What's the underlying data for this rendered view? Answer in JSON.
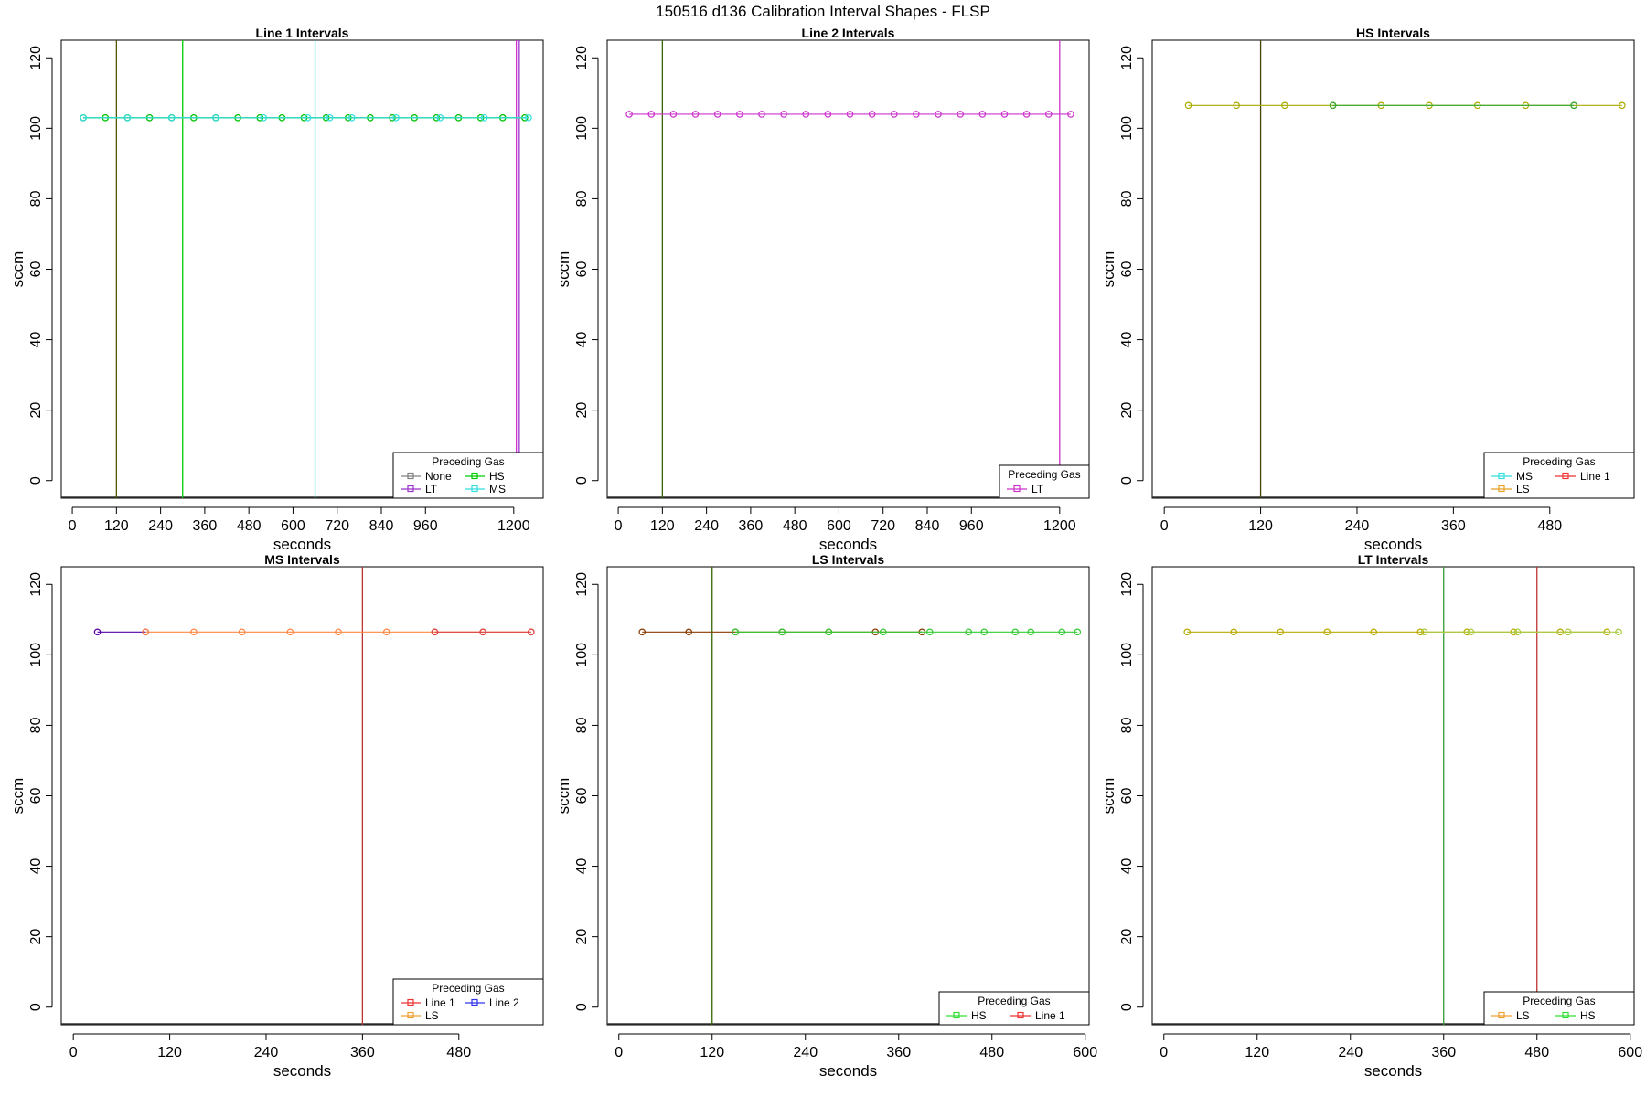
{
  "title": "150516   d136   Calibration Interval Shapes - FLSP",
  "chart_data": [
    {
      "type": "line",
      "title": "Line 1 Intervals",
      "xlabel": "seconds",
      "ylabel": "sccm",
      "xlim": [
        -30,
        1280
      ],
      "ylim": [
        -5,
        125
      ],
      "xticks": [
        0,
        120,
        240,
        360,
        480,
        600,
        720,
        840,
        960,
        1200
      ],
      "yticks": [
        0,
        20,
        40,
        60,
        80,
        100,
        120
      ],
      "legend_title": "Preceding Gas",
      "legend_position": "bottom-right",
      "legend": [
        {
          "label": "None",
          "color": "#808080"
        },
        {
          "label": "HS",
          "color": "#00cc00"
        },
        {
          "label": "LT",
          "color": "#9933cc"
        },
        {
          "label": "MS",
          "color": "#33dddd"
        }
      ],
      "vlines": [
        {
          "x": 120,
          "color": "#555500"
        },
        {
          "x": 300,
          "color": "#00cc00"
        },
        {
          "x": 660,
          "color": "#33dddd"
        },
        {
          "x": 1207,
          "color": "#cc33cc"
        },
        {
          "x": 1215,
          "color": "#9933cc"
        }
      ],
      "series": [
        {
          "name": "None",
          "color": "#808080",
          "x": [
            30,
            90,
            150,
            210,
            270,
            330,
            390,
            450,
            510,
            570,
            630,
            690,
            750,
            810,
            870,
            930,
            990,
            1050,
            1110,
            1170,
            1230
          ],
          "y": [
            103,
            103,
            103,
            103,
            103,
            103,
            103,
            103,
            103,
            103,
            103,
            103,
            103,
            103,
            103,
            103,
            103,
            103,
            103,
            103,
            103
          ]
        },
        {
          "name": "HS",
          "color": "#00cc00",
          "x": [
            30,
            90,
            150,
            210,
            270,
            330,
            390,
            450,
            510,
            570,
            630,
            690,
            750,
            810,
            870,
            930,
            990,
            1050,
            1110,
            1170,
            1230
          ],
          "y": [
            103,
            103,
            103,
            103,
            103,
            103,
            103,
            103,
            103,
            103,
            103,
            103,
            103,
            103,
            103,
            103,
            103,
            103,
            103,
            103,
            103
          ]
        },
        {
          "name": "MS",
          "color": "#33dddd",
          "x": [
            30,
            150,
            270,
            390,
            520,
            640,
            700,
            760,
            880,
            1000,
            1120,
            1240
          ],
          "y": [
            103,
            103,
            103,
            103,
            103,
            103,
            103,
            103,
            103,
            103,
            103,
            103
          ]
        }
      ]
    },
    {
      "type": "line",
      "title": "Line 2 Intervals",
      "xlabel": "seconds",
      "ylabel": "sccm",
      "xlim": [
        -30,
        1280
      ],
      "ylim": [
        -5,
        125
      ],
      "xticks": [
        0,
        120,
        240,
        360,
        480,
        600,
        720,
        840,
        960,
        1200
      ],
      "yticks": [
        0,
        20,
        40,
        60,
        80,
        100,
        120
      ],
      "legend_title": "Preceding Gas",
      "legend_position": "bottom-right",
      "legend": [
        {
          "label": "LT",
          "color": "#cc33cc"
        }
      ],
      "vlines": [
        {
          "x": 120,
          "color": "#336600"
        },
        {
          "x": 1200,
          "color": "#cc33cc"
        }
      ],
      "series": [
        {
          "name": "LT",
          "color": "#cc33cc",
          "x": [
            30,
            90,
            150,
            210,
            270,
            330,
            390,
            450,
            510,
            570,
            630,
            690,
            750,
            810,
            870,
            930,
            990,
            1050,
            1110,
            1170,
            1230
          ],
          "y": [
            104,
            104,
            104,
            104,
            104,
            104,
            104,
            104,
            104,
            104,
            104,
            104,
            104,
            104,
            104,
            104,
            104,
            104,
            104,
            104,
            104
          ]
        }
      ]
    },
    {
      "type": "line",
      "title": "HS Intervals",
      "xlabel": "seconds",
      "ylabel": "sccm",
      "xlim": [
        -15,
        585
      ],
      "ylim": [
        -5,
        125
      ],
      "xticks": [
        0,
        120,
        240,
        360,
        480
      ],
      "yticks": [
        0,
        20,
        40,
        60,
        80,
        100,
        120
      ],
      "legend_title": "Preceding Gas",
      "legend_position": "bottom-right",
      "legend": [
        {
          "label": "MS",
          "color": "#33dddd"
        },
        {
          "label": "Line 1",
          "color": "#ee3333"
        },
        {
          "label": "LS",
          "color": "#e8a020"
        }
      ],
      "vlines": [
        {
          "x": 120,
          "color": "#444400"
        }
      ],
      "series": [
        {
          "name": "LS",
          "color": "#aaaa00",
          "x": [
            30,
            90,
            150,
            210,
            270,
            330,
            390,
            450,
            510,
            570
          ],
          "y": [
            106.5,
            106.5,
            106.5,
            106.5,
            106.5,
            106.5,
            106.5,
            106.5,
            106.5,
            106.5
          ]
        },
        {
          "name": "MS",
          "color": "#33aa33",
          "x": [
            210,
            510
          ],
          "y": [
            106.5,
            106.5
          ]
        }
      ]
    },
    {
      "type": "line",
      "title": "MS Intervals",
      "xlabel": "seconds",
      "ylabel": "sccm",
      "xlim": [
        -15,
        585
      ],
      "ylim": [
        -5,
        125
      ],
      "xticks": [
        0,
        120,
        240,
        360,
        480
      ],
      "yticks": [
        0,
        20,
        40,
        60,
        80,
        100,
        120
      ],
      "legend_title": "Preceding Gas",
      "legend_position": "bottom-right",
      "legend": [
        {
          "label": "Line 1",
          "color": "#ee3333"
        },
        {
          "label": "Line 2",
          "color": "#3333ee"
        },
        {
          "label": "LS",
          "color": "#f0a030"
        }
      ],
      "vlines": [
        {
          "x": 360,
          "color": "#bb3333"
        }
      ],
      "series": [
        {
          "name": "Line 2",
          "color": "#5500aa",
          "x": [
            30,
            90
          ],
          "y": [
            106.5,
            106.5
          ]
        },
        {
          "name": "LS",
          "color": "#ff8844",
          "x": [
            90,
            150,
            210,
            270,
            330,
            390,
            450,
            510,
            570
          ],
          "y": [
            106.5,
            106.5,
            106.5,
            106.5,
            106.5,
            106.5,
            106.5,
            106.5,
            106.5
          ]
        },
        {
          "name": "Line 1",
          "color": "#dd4444",
          "x": [
            450,
            510,
            570
          ],
          "y": [
            106.5,
            106.5,
            106.5
          ]
        }
      ]
    },
    {
      "type": "line",
      "title": "LS Intervals",
      "xlabel": "seconds",
      "ylabel": "sccm",
      "xlim": [
        -15,
        605
      ],
      "ylim": [
        -5,
        125
      ],
      "xticks": [
        0,
        120,
        240,
        360,
        480,
        600
      ],
      "yticks": [
        0,
        20,
        40,
        60,
        80,
        100,
        120
      ],
      "legend_title": "Preceding Gas",
      "legend_position": "bottom-right",
      "legend": [
        {
          "label": "HS",
          "color": "#33dd33"
        },
        {
          "label": "Line 1",
          "color": "#ee3333"
        }
      ],
      "vlines": [
        {
          "x": 120,
          "color": "#336600"
        }
      ],
      "series": [
        {
          "name": "Line 1",
          "color": "#8a3a00",
          "x": [
            30,
            90,
            150,
            210,
            270,
            330,
            390
          ],
          "y": [
            106.5,
            106.5,
            106.5,
            106.5,
            106.5,
            106.5,
            106.5
          ]
        },
        {
          "name": "HS",
          "color": "#33cc33",
          "x": [
            150,
            210,
            270,
            340,
            400,
            450,
            470,
            510,
            530,
            570,
            590
          ],
          "y": [
            106.5,
            106.5,
            106.5,
            106.5,
            106.5,
            106.5,
            106.5,
            106.5,
            106.5,
            106.5,
            106.5
          ]
        }
      ]
    },
    {
      "type": "line",
      "title": "LT Intervals",
      "xlabel": "seconds",
      "ylabel": "sccm",
      "xlim": [
        -15,
        605
      ],
      "ylim": [
        -5,
        125
      ],
      "xticks": [
        0,
        120,
        240,
        360,
        480,
        600
      ],
      "yticks": [
        0,
        20,
        40,
        60,
        80,
        100,
        120
      ],
      "legend_title": "Preceding Gas",
      "legend_position": "bottom-right",
      "legend": [
        {
          "label": "LS",
          "color": "#f0a030"
        },
        {
          "label": "HS",
          "color": "#33dd33"
        }
      ],
      "vlines": [
        {
          "x": 360,
          "color": "#339933"
        },
        {
          "x": 480,
          "color": "#bb3333"
        }
      ],
      "series": [
        {
          "name": "LS",
          "color": "#bbaa00",
          "x": [
            30,
            90,
            150,
            210,
            270,
            330,
            390,
            450,
            510,
            570
          ],
          "y": [
            106.5,
            106.5,
            106.5,
            106.5,
            106.5,
            106.5,
            106.5,
            106.5,
            106.5,
            106.5
          ]
        },
        {
          "name": "HS",
          "color": "#aacc44",
          "x": [
            335,
            395,
            455,
            520,
            585
          ],
          "y": [
            106.5,
            106.5,
            106.5,
            106.5,
            106.5
          ]
        }
      ]
    }
  ]
}
